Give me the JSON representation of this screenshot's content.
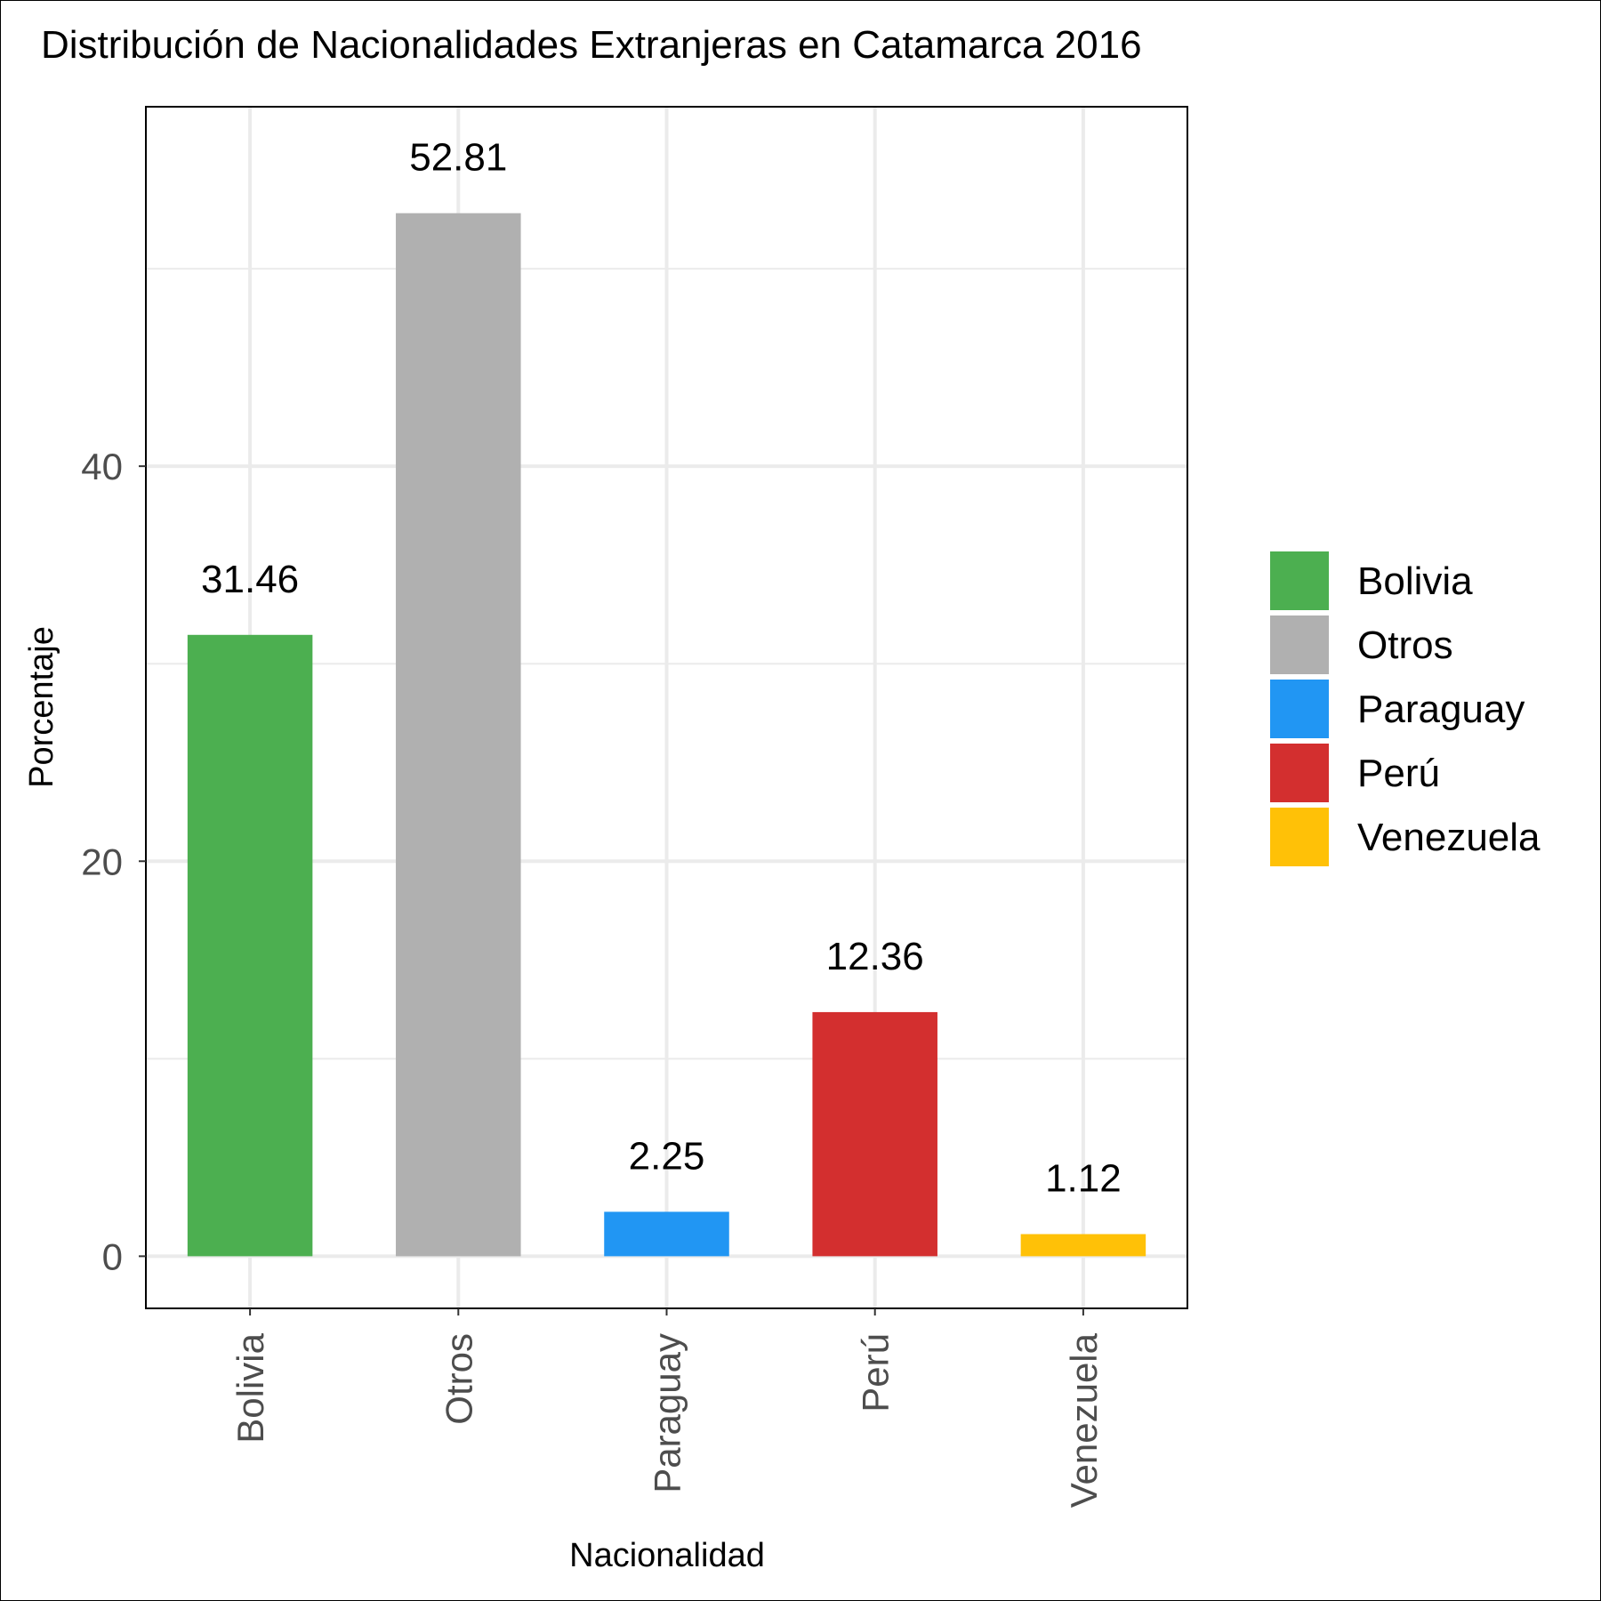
{
  "chart_data": {
    "type": "bar",
    "title": "Distribución de Nacionalidades Extranjeras en Catamarca 2016",
    "xlabel": "Nacionalidad",
    "ylabel": "Porcentaje",
    "categories": [
      "Bolivia",
      "Otros",
      "Paraguay",
      "Perú",
      "Venezuela"
    ],
    "values": [
      31.46,
      52.81,
      2.25,
      12.36,
      1.12
    ],
    "data_labels": [
      "31.46",
      "52.81",
      "2.25",
      "12.36",
      "1.12"
    ],
    "colors": [
      "#4caf50",
      "#b0b0b0",
      "#2196f3",
      "#d32f2f",
      "#ffc107"
    ],
    "ylim": [
      -2.64,
      58.2
    ],
    "y_ticks": [
      0,
      20,
      40
    ],
    "y_tick_labels": [
      "0",
      "20",
      "40"
    ],
    "grid": true,
    "legend": {
      "placement": "right",
      "entries": [
        "Bolivia",
        "Otros",
        "Paraguay",
        "Perú",
        "Venezuela"
      ]
    }
  }
}
